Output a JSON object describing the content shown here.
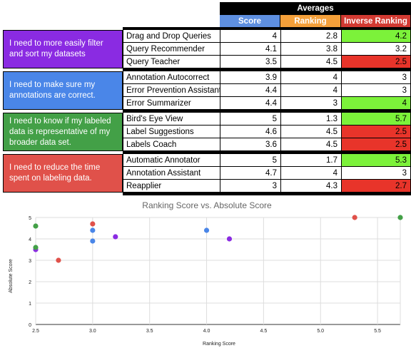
{
  "table": {
    "header_group": "Averages",
    "columns": [
      "Score",
      "Ranking",
      "Inverse Ranking"
    ],
    "column_colors": [
      "#5e8fe0",
      "#f5a03a",
      "#d23a32"
    ],
    "groups": [
      {
        "need": "I need to more easily filter and sort my datasets",
        "color": "#8a2be2",
        "rows": [
          {
            "feature": "Drag and Drop Queries",
            "score": "4",
            "ranking": "2.8",
            "inverse": "4.2",
            "inverse_color": "#7cf23a"
          },
          {
            "feature": "Query Recommender",
            "score": "4.1",
            "ranking": "3.8",
            "inverse": "3.2",
            "inverse_color": "#ffffff"
          },
          {
            "feature": "Query Teacher",
            "score": "3.5",
            "ranking": "4.5",
            "inverse": "2.5",
            "inverse_color": "#e8342a"
          }
        ]
      },
      {
        "need": "I need to make sure my annotations are correct.",
        "color": "#4a86e8",
        "rows": [
          {
            "feature": "Annotation Autocorrect",
            "score": "3.9",
            "ranking": "4",
            "inverse": "3",
            "inverse_color": "#ffffff"
          },
          {
            "feature": "Error Prevention Assistant",
            "score": "4.4",
            "ranking": "4",
            "inverse": "3",
            "inverse_color": "#ffffff"
          },
          {
            "feature": "Error Summarizer",
            "score": "4.4",
            "ranking": "3",
            "inverse": "4",
            "inverse_color": "#7cf23a"
          }
        ]
      },
      {
        "need": "I need to know if my labeled data is representative of my broader data set.",
        "color": "#43a047",
        "rows": [
          {
            "feature": "Bird's Eye View",
            "score": "5",
            "ranking": "1.3",
            "inverse": "5.7",
            "inverse_color": "#7cf23a"
          },
          {
            "feature": "Label Suggestions",
            "score": "4.6",
            "ranking": "4.5",
            "inverse": "2.5",
            "inverse_color": "#e8342a"
          },
          {
            "feature": "Labels Coach",
            "score": "3.6",
            "ranking": "4.5",
            "inverse": "2.5",
            "inverse_color": "#e8342a"
          }
        ]
      },
      {
        "need": "I need to reduce the time spent on labeling data.",
        "color": "#e0514a",
        "rows": [
          {
            "feature": "Automatic Annotator",
            "score": "5",
            "ranking": "1.7",
            "inverse": "5.3",
            "inverse_color": "#7cf23a"
          },
          {
            "feature": "Annotation Assistant",
            "score": "4.7",
            "ranking": "4",
            "inverse": "3",
            "inverse_color": "#ffffff"
          },
          {
            "feature": "Reapplier",
            "score": "3",
            "ranking": "4.3",
            "inverse": "2.7",
            "inverse_color": "#e8342a"
          }
        ]
      }
    ]
  },
  "chart_data": {
    "type": "scatter",
    "title": "Ranking Score vs. Absolute Score",
    "xlabel": "Ranking Score",
    "ylabel": "Absolute Score",
    "xlim": [
      2.5,
      5.7
    ],
    "ylim": [
      0,
      5
    ],
    "xticks": [
      "2.5",
      "3.0",
      "3.5",
      "4.0",
      "4.5",
      "5.0",
      "5.5"
    ],
    "yticks": [
      "0",
      "1",
      "2",
      "3",
      "4",
      "5"
    ],
    "grid": true,
    "colors": [
      "#8a2be2",
      "#4a86e8",
      "#43a047",
      "#e0514a"
    ],
    "series": [
      {
        "points": [
          [
            4.2,
            4
          ],
          [
            3.2,
            4.1
          ],
          [
            2.5,
            3.5
          ]
        ]
      },
      {
        "points": [
          [
            3,
            3.9
          ],
          [
            3,
            4.4
          ],
          [
            4,
            4.4
          ]
        ]
      },
      {
        "points": [
          [
            5.7,
            5
          ],
          [
            2.5,
            4.6
          ],
          [
            2.5,
            3.6
          ]
        ]
      },
      {
        "points": [
          [
            5.3,
            5
          ],
          [
            3,
            4.7
          ],
          [
            2.7,
            3
          ]
        ]
      }
    ]
  }
}
